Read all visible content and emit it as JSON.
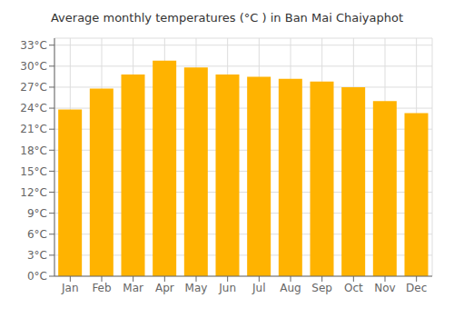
{
  "chart_data": {
    "type": "bar",
    "title": "Average monthly temperatures (°C ) in Ban Mai Chaiyaphot",
    "categories": [
      "Jan",
      "Feb",
      "Mar",
      "Apr",
      "May",
      "Jun",
      "Jul",
      "Aug",
      "Sep",
      "Oct",
      "Nov",
      "Dec"
    ],
    "values": [
      23.8,
      26.8,
      28.8,
      30.8,
      29.8,
      28.8,
      28.5,
      28.2,
      27.8,
      27.0,
      25.0,
      23.3
    ],
    "color": "#FFB300",
    "ylim": [
      0,
      34
    ],
    "yticks": [
      {
        "value": 0,
        "label": "0°C"
      },
      {
        "value": 3,
        "label": "3°C"
      },
      {
        "value": 6,
        "label": "6°C"
      },
      {
        "value": 9,
        "label": "9°C"
      },
      {
        "value": 12,
        "label": "12°C"
      },
      {
        "value": 15,
        "label": "15°C"
      },
      {
        "value": 18,
        "label": "18°C"
      },
      {
        "value": 21,
        "label": "21°C"
      },
      {
        "value": 24,
        "label": "24°C"
      },
      {
        "value": 27,
        "label": "27°C"
      },
      {
        "value": 30,
        "label": "30°C"
      },
      {
        "value": 33,
        "label": "33°C"
      }
    ],
    "grid": true
  }
}
